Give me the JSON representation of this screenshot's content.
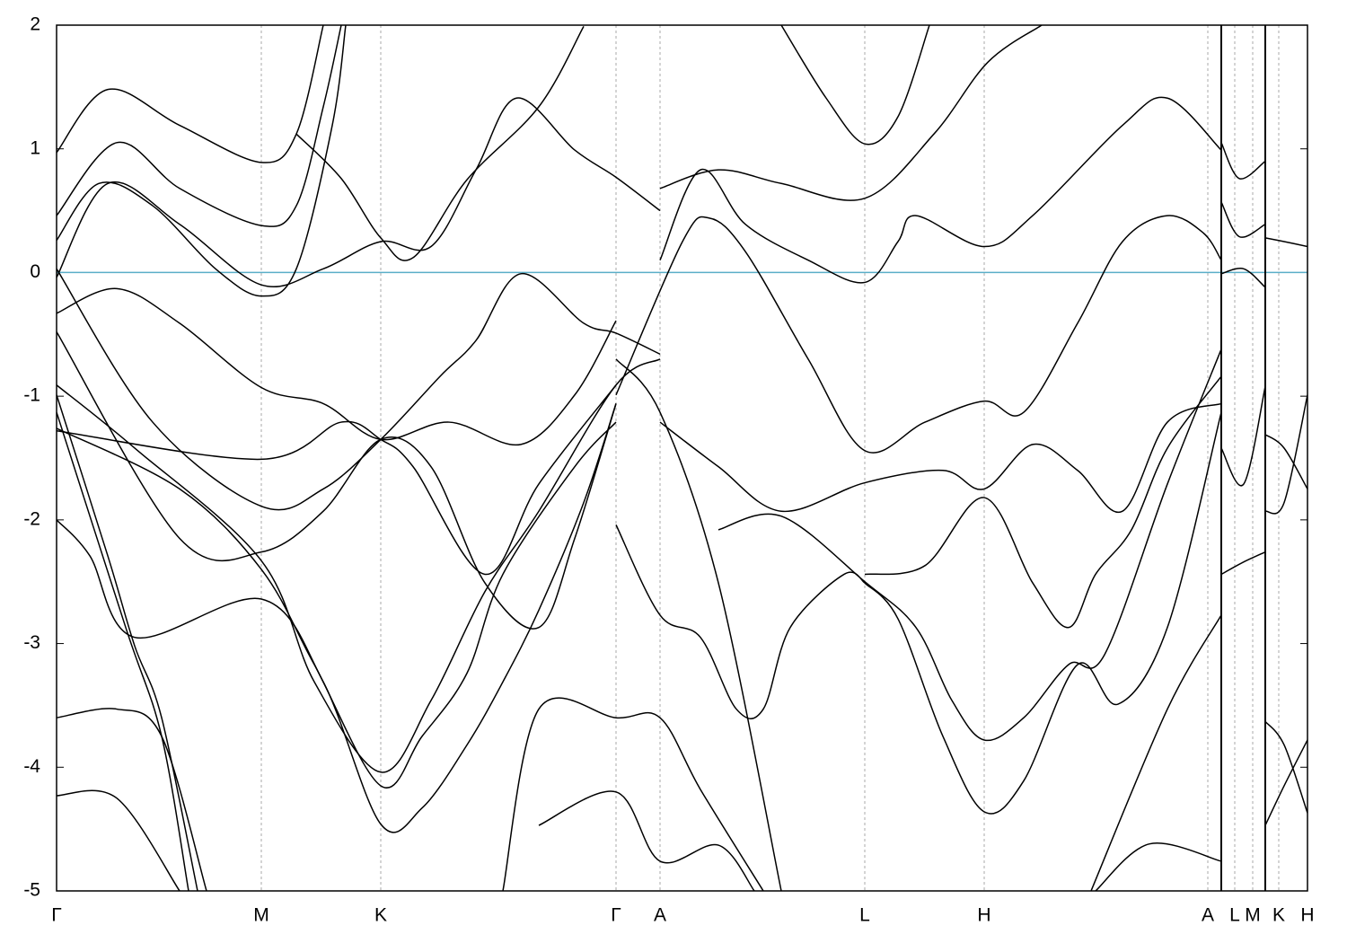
{
  "chart_data": {
    "type": "band-structure",
    "line_color": "#000000",
    "fermi_level": 0,
    "fermi_color": "#5aaec8",
    "grid": true,
    "xlim": [
      0,
      13.93
    ],
    "ylim": [
      -5,
      2
    ],
    "yticks": [
      -5,
      -4,
      -3,
      -2,
      -1,
      0,
      1,
      2
    ],
    "xticks": [
      {
        "value": 0,
        "label": "Γ"
      },
      {
        "value": 2.28,
        "label": "M"
      },
      {
        "value": 3.61,
        "label": "K"
      },
      {
        "value": 6.23,
        "label": "Γ"
      },
      {
        "value": 6.72,
        "label": "A"
      },
      {
        "value": 9.0,
        "label": "L"
      },
      {
        "value": 10.33,
        "label": "H"
      },
      {
        "value": 12.82,
        "label": "A"
      },
      {
        "value": 13.12,
        "label": "L"
      },
      {
        "value": 13.32,
        "label": "M"
      },
      {
        "value": 13.61,
        "label": "K"
      },
      {
        "value": 13.93,
        "label": "H"
      }
    ],
    "path_breaks": [
      12.97,
      13.46
    ],
    "series": [
      {
        "x": [
          0,
          0.67,
          1.37,
          2.28,
          2.97,
          3.61,
          4.37,
          5.17,
          5.77,
          6.23
        ],
        "values": [
          -0.33,
          -0.13,
          -0.41,
          -0.93,
          -1.06,
          -1.35,
          -1.21,
          -1.39,
          -0.99,
          -0.39
        ]
      },
      {
        "x": [
          0,
          0.57,
          1.37,
          2.28,
          2.97,
          3.61,
          4.17,
          4.67,
          5.12,
          5.77,
          6.23,
          6.72
        ],
        "values": [
          -0.04,
          0.72,
          0.39,
          -0.1,
          0.03,
          0.25,
          0.21,
          0.83,
          1.41,
          0.99,
          0.77,
          0.5
        ]
      },
      {
        "x": [
          0,
          0.47,
          1.07,
          1.77,
          2.28,
          2.67,
          3.07,
          3.22
        ],
        "values": [
          0.26,
          0.72,
          0.54,
          0.03,
          -0.19,
          0.03,
          1.19,
          2.0
        ]
      },
      {
        "x": [
          0,
          0.67,
          1.37,
          2.28,
          2.67,
          2.97,
          3.17
        ],
        "values": [
          0.46,
          1.05,
          0.68,
          0.38,
          0.54,
          1.34,
          2.0
        ]
      },
      {
        "x": [
          2.67,
          3.17,
          3.61,
          3.97,
          4.57,
          5.37,
          5.87
        ],
        "values": [
          1.12,
          0.76,
          0.28,
          0.12,
          0.75,
          1.34,
          1.99
        ]
      },
      {
        "x": [
          0,
          0.57,
          1.37,
          2.28,
          2.67,
          2.97
        ],
        "values": [
          0.97,
          1.48,
          1.19,
          0.89,
          1.12,
          2.0
        ]
      },
      {
        "x": [
          8.07,
          8.57,
          9.0,
          9.37,
          9.72
        ],
        "values": [
          2.0,
          1.41,
          1.04,
          1.26,
          2.0
        ]
      },
      {
        "x": [
          6.72,
          7.37,
          8.07,
          9.0,
          9.77,
          10.37,
          10.97
        ],
        "values": [
          0.68,
          0.83,
          0.72,
          0.6,
          1.12,
          1.7,
          2.0
        ]
      },
      {
        "x": [
          6.72,
          7.17,
          7.67,
          8.37,
          9.0,
          9.37,
          9.57,
          10.33,
          10.87,
          11.87,
          12.37,
          12.97
        ],
        "values": [
          0.1,
          0.83,
          0.39,
          0.1,
          -0.08,
          0.25,
          0.46,
          0.21,
          0.46,
          1.19,
          1.41,
          0.99
        ]
      },
      {
        "x": [
          6.23,
          6.97,
          7.27,
          7.67,
          8.37,
          9.0,
          9.67,
          10.33,
          10.77,
          11.37,
          11.87,
          12.37,
          12.77,
          12.97
        ],
        "values": [
          -0.99,
          0.25,
          0.44,
          0.17,
          -0.7,
          -1.44,
          -1.21,
          -1.04,
          -1.13,
          -0.41,
          0.25,
          0.46,
          0.32,
          0.1
        ]
      },
      {
        "x": [
          6.72,
          7.37,
          8.07,
          9.0,
          9.87,
          10.33,
          10.87,
          11.37,
          11.87,
          12.37,
          12.97
        ],
        "values": [
          -1.21,
          -1.57,
          -1.93,
          -1.7,
          -1.6,
          -1.75,
          -1.39,
          -1.6,
          -1.93,
          -1.21,
          -1.06
        ]
      },
      {
        "x": [
          9.0,
          9.67,
          10.33,
          10.87,
          11.27,
          11.57,
          11.97,
          12.37,
          12.97
        ],
        "values": [
          -2.44,
          -2.37,
          -1.82,
          -2.51,
          -2.87,
          -2.44,
          -2.08,
          -1.42,
          -0.84
        ]
      },
      {
        "x": [
          7.37,
          8.07,
          9.0,
          9.57,
          9.97,
          10.33,
          10.77,
          11.27,
          11.67,
          12.37,
          12.97
        ],
        "values": [
          -2.08,
          -1.97,
          -2.5,
          -2.87,
          -3.46,
          -3.78,
          -3.6,
          -3.17,
          -3.09,
          -1.71,
          -0.62
        ]
      },
      {
        "x": [
          9.0,
          9.37,
          9.87,
          10.33,
          10.77,
          11.37,
          11.82,
          12.37,
          12.97
        ],
        "values": [
          -2.51,
          -2.8,
          -3.75,
          -4.36,
          -4.11,
          -3.17,
          -3.49,
          -2.87,
          -1.13
        ]
      },
      {
        "x": [
          6.23,
          6.72,
          7.17,
          7.57,
          7.87,
          8.17,
          8.77,
          9.0
        ],
        "values": [
          -2.04,
          -2.77,
          -2.95,
          -3.53,
          -3.53,
          -2.87,
          -2.44,
          -2.51
        ]
      },
      {
        "x": [
          6.23,
          6.72,
          7.37,
          8.07
        ],
        "values": [
          -0.7,
          -1.13,
          -2.51,
          -5.0
        ]
      },
      {
        "x": [
          5.37,
          6.23,
          6.72,
          7.37,
          7.77
        ],
        "values": [
          -4.47,
          -4.2,
          -4.76,
          -4.63,
          -5.0
        ]
      },
      {
        "x": [
          4.97,
          5.37,
          6.23,
          6.72,
          7.17,
          7.87
        ],
        "values": [
          -5.0,
          -3.53,
          -3.6,
          -3.6,
          -4.18,
          -5.0
        ]
      },
      {
        "x": [
          11.57,
          12.17,
          12.97
        ],
        "values": [
          -5.0,
          -4.62,
          -4.76
        ]
      },
      {
        "x": [
          11.52,
          12.37,
          12.97
        ],
        "values": [
          -5.0,
          -3.53,
          -2.77
        ]
      },
      {
        "x": [
          0,
          0.37,
          0.87,
          2.28,
          2.97,
          3.61,
          4.07,
          4.57,
          4.97,
          5.37,
          5.87,
          6.23
        ],
        "values": [
          -2.0,
          -2.29,
          -2.95,
          -2.64,
          -3.31,
          -4.46,
          -4.33,
          -3.82,
          -3.31,
          -2.73,
          -1.86,
          -1.06
        ]
      },
      {
        "x": [
          0,
          0.67,
          1.37
        ],
        "values": [
          -4.23,
          -4.25,
          -5.0
        ]
      },
      {
        "x": [
          0,
          0.77,
          1.17,
          1.47
        ],
        "values": [
          -1.13,
          -2.87,
          -3.75,
          -5.0
        ]
      },
      {
        "x": [
          0,
          0.57,
          0.87,
          1.17,
          1.57
        ],
        "values": [
          -0.99,
          -2.29,
          -3.02,
          -3.6,
          -5.0
        ]
      },
      {
        "x": [
          0,
          1.37,
          2.28,
          2.87,
          3.61,
          4.07,
          4.57,
          4.97,
          5.77,
          6.23
        ],
        "values": [
          -1.26,
          -1.75,
          -2.4,
          -3.17,
          -4.15,
          -3.75,
          -3.24,
          -2.44,
          -1.57,
          -1.21
        ]
      },
      {
        "x": [
          0,
          0.87,
          2.28,
          2.87,
          3.61,
          4.17,
          4.77,
          5.37,
          6.23,
          6.72
        ],
        "values": [
          -0.91,
          -1.42,
          -2.33,
          -3.31,
          -4.04,
          -3.46,
          -2.58,
          -1.93,
          -0.91,
          -0.7
        ]
      },
      {
        "x": [
          0,
          2.28,
          3.17,
          3.61,
          3.97,
          4.77,
          5.37,
          6.23
        ],
        "values": [
          -1.28,
          -1.51,
          -1.21,
          -1.35,
          -1.57,
          -2.44,
          -1.71,
          -0.91
        ]
      },
      {
        "x": [
          0,
          1.07,
          2.28,
          2.97,
          3.61,
          4.27,
          4.67,
          5.17,
          5.87,
          6.23,
          6.72
        ],
        "values": [
          0.03,
          -1.21,
          -1.89,
          -1.75,
          -1.35,
          -0.84,
          -0.55,
          -0.01,
          -0.41,
          -0.49,
          -0.66
        ]
      },
      {
        "x": [
          0,
          1.37,
          2.28,
          2.97,
          3.61,
          4.17,
          4.77,
          5.37,
          5.77,
          6.23
        ],
        "values": [
          -0.48,
          -2.15,
          -2.26,
          -1.93,
          -1.35,
          -1.57,
          -2.51,
          -2.87,
          -2.15,
          -1.06
        ]
      },
      {
        "x": [
          0,
          0.67,
          1.17,
          1.67
        ],
        "values": [
          -3.6,
          -3.53,
          -3.75,
          -5.0
        ]
      },
      {
        "x": [
          12.97,
          13.17,
          13.46
        ],
        "values": [
          1.05,
          0.76,
          0.9
        ]
      },
      {
        "x": [
          12.97,
          13.17,
          13.46
        ],
        "values": [
          0.57,
          0.29,
          0.39
        ]
      },
      {
        "x": [
          12.97,
          13.22,
          13.46
        ],
        "values": [
          -0.01,
          0.03,
          -0.12
        ]
      },
      {
        "x": [
          12.97,
          13.22,
          13.46
        ],
        "values": [
          -1.42,
          -1.71,
          -0.92
        ]
      },
      {
        "x": [
          12.97,
          13.22,
          13.46
        ],
        "values": [
          -2.44,
          -2.34,
          -2.26
        ]
      },
      {
        "x": [
          13.46,
          13.67,
          13.93
        ],
        "values": [
          0.28,
          0.25,
          0.21
        ]
      },
      {
        "x": [
          13.46,
          13.67,
          13.93
        ],
        "values": [
          -1.31,
          -1.42,
          -1.75
        ]
      },
      {
        "x": [
          13.46,
          13.67,
          13.93
        ],
        "values": [
          -1.93,
          -1.86,
          -0.99
        ]
      },
      {
        "x": [
          13.46,
          13.67,
          13.93
        ],
        "values": [
          -4.47,
          -4.15,
          -3.78
        ]
      },
      {
        "x": [
          13.46,
          13.67,
          13.93
        ],
        "values": [
          -3.63,
          -3.82,
          -4.37
        ]
      }
    ]
  }
}
